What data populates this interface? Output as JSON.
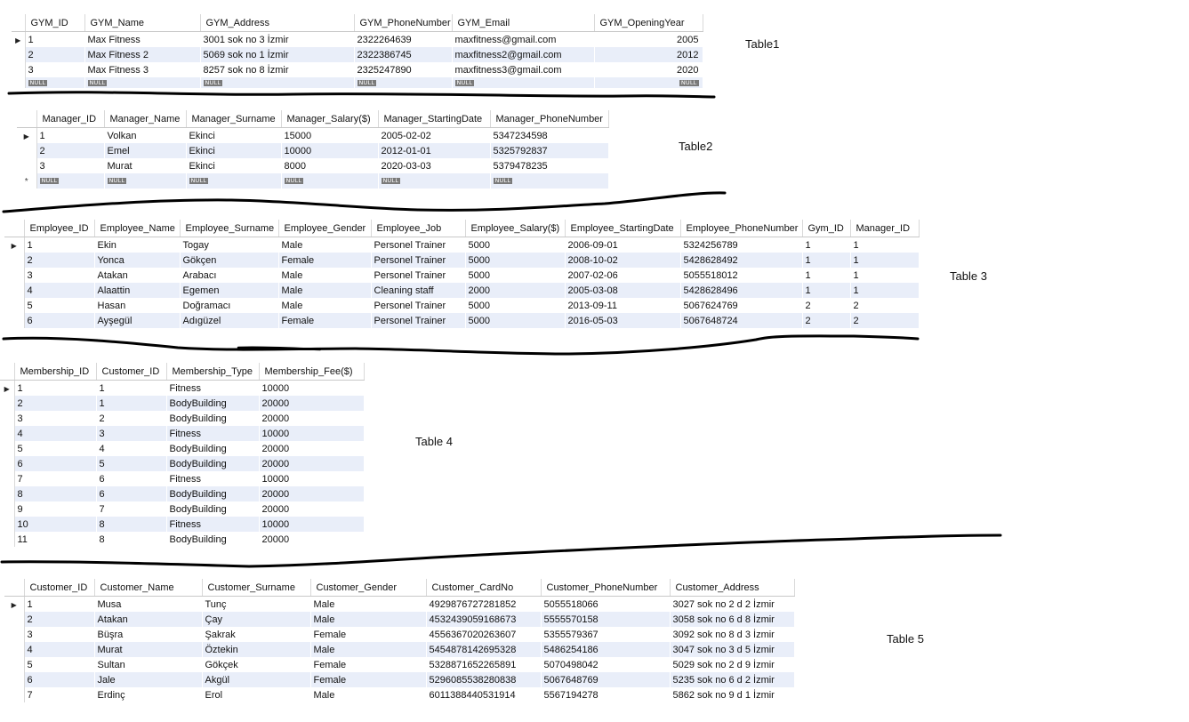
{
  "null_text": "NULL",
  "tables": [
    {
      "label": "Table1",
      "columns": [
        "GYM_ID",
        "GYM_Name",
        "GYM_Address",
        "GYM_PhoneNumber",
        "GYM_Email",
        "GYM_OpeningYear"
      ],
      "rows": [
        [
          "1",
          "Max Fitness",
          "3001 sok no 3 İzmir",
          "2322264639",
          "maxfitness@gmail.com",
          "2005"
        ],
        [
          "2",
          "Max Fitness 2",
          "5069 sok no 1 İzmir",
          "2322386745",
          "maxfitness2@gmail.com",
          "2012"
        ],
        [
          "3",
          "Max Fitness 3",
          "8257 sok no 8 İzmir",
          "2325247890",
          "maxfitness3@gmail.com",
          "2020"
        ]
      ]
    },
    {
      "label": "Table2",
      "columns": [
        "Manager_ID",
        "Manager_Name",
        "Manager_Surname",
        "Manager_Salary($)",
        "Manager_StartingDate",
        "Manager_PhoneNumber"
      ],
      "rows": [
        [
          "1",
          "Volkan",
          "Ekinci",
          "15000",
          "2005-02-02",
          "5347234598"
        ],
        [
          "2",
          "Emel",
          "Ekinci",
          "10000",
          "2012-01-01",
          "5325792837"
        ],
        [
          "3",
          "Murat",
          "Ekinci",
          "8000",
          "2020-03-03",
          "5379478235"
        ]
      ]
    },
    {
      "label": "Table 3",
      "columns": [
        "Employee_ID",
        "Employee_Name",
        "Employee_Surname",
        "Employee_Gender",
        "Employee_Job",
        "Employee_Salary($)",
        "Employee_StartingDate",
        "Employee_PhoneNumber",
        "Gym_ID",
        "Manager_ID"
      ],
      "rows": [
        [
          "1",
          "Ekin",
          "Togay",
          "Male",
          "Personel Trainer",
          "5000",
          "2006-09-01",
          "5324256789",
          "1",
          "1"
        ],
        [
          "2",
          "Yonca",
          "Gökçen",
          "Female",
          "Personel Trainer",
          "5000",
          "2008-10-02",
          "5428628492",
          "1",
          "1"
        ],
        [
          "3",
          "Atakan",
          "Arabacı",
          "Male",
          "Personel Trainer",
          "5000",
          "2007-02-06",
          "5055518012",
          "1",
          "1"
        ],
        [
          "4",
          "Alaattin",
          "Egemen",
          "Male",
          "Cleaning staff",
          "2000",
          "2005-03-08",
          "5428628496",
          "1",
          "1"
        ],
        [
          "5",
          "Hasan",
          "Doğramacı",
          "Male",
          "Personel Trainer",
          "5000",
          "2013-09-11",
          "5067624769",
          "2",
          "2"
        ],
        [
          "6",
          "Ayşegül",
          "Adıgüzel",
          "Female",
          "Personel Trainer",
          "5000",
          "2016-05-03",
          "5067648724",
          "2",
          "2"
        ]
      ]
    },
    {
      "label": "Table 4",
      "columns": [
        "Membership_ID",
        "Customer_ID",
        "Membership_Type",
        "Membership_Fee($)"
      ],
      "rows": [
        [
          "1",
          "1",
          "Fitness",
          "10000"
        ],
        [
          "2",
          "1",
          "BodyBuilding",
          "20000"
        ],
        [
          "3",
          "2",
          "BodyBuilding",
          "20000"
        ],
        [
          "4",
          "3",
          "Fitness",
          "10000"
        ],
        [
          "5",
          "4",
          "BodyBuilding",
          "20000"
        ],
        [
          "6",
          "5",
          "BodyBuilding",
          "20000"
        ],
        [
          "7",
          "6",
          "Fitness",
          "10000"
        ],
        [
          "8",
          "6",
          "BodyBuilding",
          "20000"
        ],
        [
          "9",
          "7",
          "BodyBuilding",
          "20000"
        ],
        [
          "10",
          "8",
          "Fitness",
          "10000"
        ],
        [
          "11",
          "8",
          "BodyBuilding",
          "20000"
        ]
      ]
    },
    {
      "label": "Table 5",
      "columns": [
        "Customer_ID",
        "Customer_Name",
        "Customer_Surname",
        "Customer_Gender",
        "Customer_CardNo",
        "Customer_PhoneNumber",
        "Customer_Address"
      ],
      "rows": [
        [
          "1",
          "Musa",
          "Tunç",
          "Male",
          "4929876727281852",
          "5055518066",
          "3027 sok no 2  d 2 İzmir"
        ],
        [
          "2",
          "Atakan",
          "Çay",
          "Male",
          "4532439059168673",
          "5555570158",
          "3058 sok no 6  d 8 İzmir"
        ],
        [
          "3",
          "Büşra",
          "Şakrak",
          "Female",
          "4556367020263607",
          "5355579367",
          "3092 sok no 8 d 3 İzmir"
        ],
        [
          "4",
          "Murat",
          "Öztekin",
          "Male",
          "5454878142695328",
          "5486254186",
          "3047 sok no 3  d 5 İzmir"
        ],
        [
          "5",
          "Sultan",
          "Gökçek",
          "Female",
          "5328871652265891",
          "5070498042",
          "5029 sok no 2  d 9 İzmir"
        ],
        [
          "6",
          "Jale",
          "Akgül",
          "Female",
          "5296085538280838",
          "5067648769",
          "5235 sok no 6  d 2 İzmir"
        ],
        [
          "7",
          "Erdinç",
          "Erol",
          "Male",
          "6011388440531914",
          "5567194278",
          "5862 sok no 9  d 1 İzmir"
        ]
      ]
    }
  ]
}
